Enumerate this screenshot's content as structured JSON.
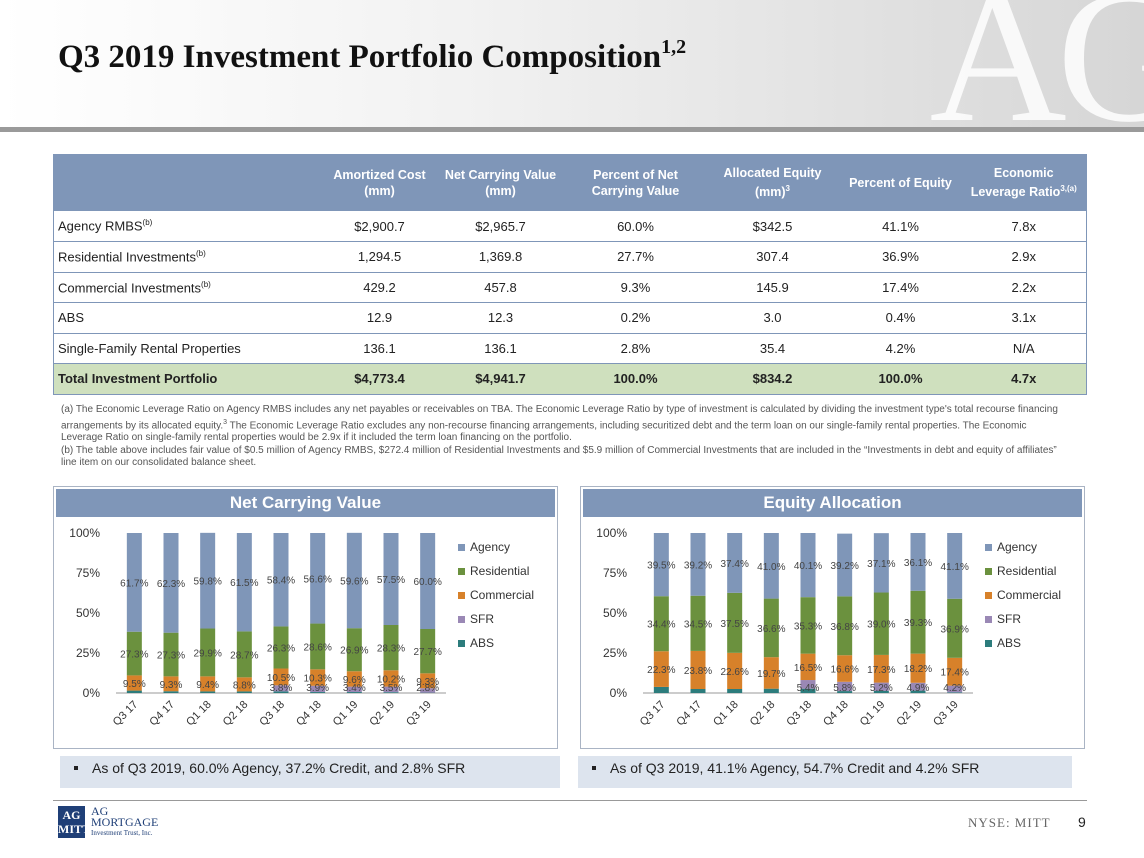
{
  "header": {
    "title": "Q3 2019 Investment Portfolio Composition",
    "title_sup": "1,2",
    "watermark": "AG"
  },
  "table": {
    "headers": [
      {
        "text": "",
        "sup": ""
      },
      {
        "text": "Amortized Cost (mm)",
        "sup": ""
      },
      {
        "text": "Net Carrying Value (mm)",
        "sup": ""
      },
      {
        "text": "Percent of Net Carrying Value",
        "sup": ""
      },
      {
        "text": "Allocated Equity (mm)",
        "sup": "3"
      },
      {
        "text": "Percent of Equity",
        "sup": ""
      },
      {
        "text": "Economic Leverage Ratio",
        "sup": "3,(a)"
      }
    ],
    "rows": [
      {
        "label": "Agency RMBS",
        "sup": "(b)",
        "cells": [
          "$2,900.7",
          "$2,965.7",
          "60.0%",
          "$342.5",
          "41.1%",
          "7.8x"
        ]
      },
      {
        "label": "Residential Investments",
        "sup": "(b)",
        "cells": [
          "1,294.5",
          "1,369.8",
          "27.7%",
          "307.4",
          "36.9%",
          "2.9x"
        ]
      },
      {
        "label": "Commercial Investments",
        "sup": "(b)",
        "cells": [
          "429.2",
          "457.8",
          "9.3%",
          "145.9",
          "17.4%",
          "2.2x"
        ]
      },
      {
        "label": "ABS",
        "sup": "",
        "cells": [
          "12.9",
          "12.3",
          "0.2%",
          "3.0",
          "0.4%",
          "3.1x"
        ]
      },
      {
        "label": "Single-Family Rental Properties",
        "sup": "",
        "cells": [
          "136.1",
          "136.1",
          "2.8%",
          "35.4",
          "4.2%",
          "N/A"
        ]
      }
    ],
    "total": {
      "label": "Total Investment Portfolio",
      "cells": [
        "$4,773.4",
        "$4,941.7",
        "100.0%",
        "$834.2",
        "100.0%",
        "4.7x"
      ]
    }
  },
  "footnotes": {
    "a_part1": "(a) The Economic Leverage Ratio on Agency RMBS includes any net payables or receivables on TBA. The Economic Leverage Ratio by type of investment is calculated by dividing the investment type's total recourse financing arrangements by its allocated equity.",
    "a_sup": "3",
    "a_part2": " The Economic Leverage Ratio excludes any non-recourse financing arrangements, including securitized debt and the term loan on our single-family rental properties. The Economic Leverage Ratio on single-family rental properties would be 2.9x if it included the term loan financing on the portfolio.",
    "b": "(b) The table above includes fair value of $0.5 million of Agency RMBS, $272.4 million of Residential Investments and $5.9 million of Commercial Investments that are included in the “Investments in debt and equity of affiliates” line item on our consolidated balance sheet."
  },
  "colors": {
    "agency": "#7f96b8",
    "residential": "#6b913e",
    "commercial": "#d7812a",
    "sfr": "#9a88b5",
    "abs": "#2c7c7c",
    "header_blue": "#7f96b8",
    "total_green": "#cfe0be"
  },
  "chart_data": [
    {
      "type": "bar",
      "stacked": true,
      "title": "Net Carrying Value",
      "categories": [
        "Q3 17",
        "Q4 17",
        "Q1 18",
        "Q2 18",
        "Q3 18",
        "Q4 18",
        "Q1 19",
        "Q2 19",
        "Q3 19"
      ],
      "ylim": [
        0,
        100
      ],
      "yticks": [
        "0%",
        "25%",
        "50%",
        "75%",
        "100%"
      ],
      "legend_position": "right",
      "series": [
        {
          "name": "ABS",
          "color": "#2c7c7c",
          "values": [
            1.5,
            1.1,
            1.0,
            1.0,
            1.0,
            0.6,
            0.6,
            0.5,
            0.2
          ],
          "labels": [
            "",
            "",
            "",
            "",
            "",
            "",
            "",
            "",
            ""
          ]
        },
        {
          "name": "SFR",
          "color": "#9a88b5",
          "values": [
            0,
            0,
            0,
            0,
            3.8,
            3.9,
            3.4,
            3.5,
            2.8
          ],
          "labels": [
            "",
            "",
            "",
            "",
            "3.8%",
            "3.9%",
            "3.4%",
            "3.5%",
            "2.8%"
          ]
        },
        {
          "name": "Commercial",
          "color": "#d7812a",
          "values": [
            9.5,
            9.3,
            9.4,
            8.8,
            10.5,
            10.3,
            9.6,
            10.2,
            9.3
          ],
          "labels": [
            "9.5%",
            "9.3%",
            "9.4%",
            "8.8%",
            "10.5%",
            "10.3%",
            "9.6%",
            "10.2%",
            "9.3%"
          ]
        },
        {
          "name": "Residential",
          "color": "#6b913e",
          "values": [
            27.3,
            27.3,
            29.9,
            28.7,
            26.3,
            28.6,
            26.9,
            28.3,
            27.7
          ],
          "labels": [
            "27.3%",
            "27.3%",
            "29.9%",
            "28.7%",
            "26.3%",
            "28.6%",
            "26.9%",
            "28.3%",
            "27.7%"
          ]
        },
        {
          "name": "Agency",
          "color": "#7f96b8",
          "values": [
            61.7,
            62.3,
            59.8,
            61.5,
            58.4,
            56.6,
            59.6,
            57.5,
            60.0
          ],
          "labels": [
            "61.7%",
            "62.3%",
            "59.8%",
            "61.5%",
            "58.4%",
            "56.6%",
            "59.6%",
            "57.5%",
            "60.0%"
          ]
        }
      ],
      "legend": [
        "Agency",
        "Residential",
        "Commercial",
        "SFR",
        "ABS"
      ]
    },
    {
      "type": "bar",
      "stacked": true,
      "title": "Equity Allocation",
      "categories": [
        "Q3 17",
        "Q4 17",
        "Q1 18",
        "Q2 18",
        "Q3 18",
        "Q4 18",
        "Q1 19",
        "Q2 19",
        "Q3 19"
      ],
      "ylim": [
        0,
        100
      ],
      "yticks": [
        "0%",
        "25%",
        "50%",
        "75%",
        "100%"
      ],
      "legend_position": "right",
      "series": [
        {
          "name": "ABS",
          "color": "#2c7c7c",
          "values": [
            3.8,
            2.5,
            2.5,
            2.7,
            2.7,
            1.2,
            1.3,
            1.5,
            0.4
          ],
          "labels": [
            "",
            "",
            "",
            "",
            "",
            "",
            "",
            "",
            ""
          ]
        },
        {
          "name": "SFR",
          "color": "#9a88b5",
          "values": [
            0,
            0,
            0,
            0,
            5.4,
            5.8,
            5.2,
            4.9,
            4.2
          ],
          "labels": [
            "",
            "",
            "",
            "",
            "5.4%",
            "5.8%",
            "5.2%",
            "4.9%",
            "4.2%"
          ]
        },
        {
          "name": "Commercial",
          "color": "#d7812a",
          "values": [
            22.3,
            23.8,
            22.6,
            19.7,
            16.5,
            16.6,
            17.3,
            18.2,
            17.4
          ],
          "labels": [
            "22.3%",
            "23.8%",
            "22.6%",
            "19.7%",
            "16.5%",
            "16.6%",
            "17.3%",
            "18.2%",
            "17.4%"
          ]
        },
        {
          "name": "Residential",
          "color": "#6b913e",
          "values": [
            34.4,
            34.5,
            37.5,
            36.6,
            35.3,
            36.8,
            39.0,
            39.3,
            36.9
          ],
          "labels": [
            "34.4%",
            "34.5%",
            "37.5%",
            "36.6%",
            "35.3%",
            "36.8%",
            "39.0%",
            "39.3%",
            "36.9%"
          ]
        },
        {
          "name": "Agency",
          "color": "#7f96b8",
          "values": [
            39.5,
            39.2,
            37.4,
            41.0,
            40.1,
            39.2,
            37.1,
            36.1,
            41.1
          ],
          "labels": [
            "39.5%",
            "39.2%",
            "37.4%",
            "41.0%",
            "40.1%",
            "39.2%",
            "37.1%",
            "36.1%",
            "41.1%"
          ]
        }
      ],
      "legend": [
        "Agency",
        "Residential",
        "Commercial",
        "SFR",
        "ABS"
      ]
    }
  ],
  "bullets": {
    "left": "As of Q3 2019, 60.0% Agency, 37.2% Credit, and 2.8% SFR",
    "right": "As of Q3 2019, 41.1% Agency, 54.7% Credit and 4.2% SFR"
  },
  "footer": {
    "logo_box_top": "AG",
    "logo_box_bottom": "MITT",
    "logo_line1": "AG",
    "logo_line2": "MORTGAGE",
    "logo_line3": "Investment Trust, Inc.",
    "exchange": "NYSE: MITT",
    "page": "9"
  }
}
